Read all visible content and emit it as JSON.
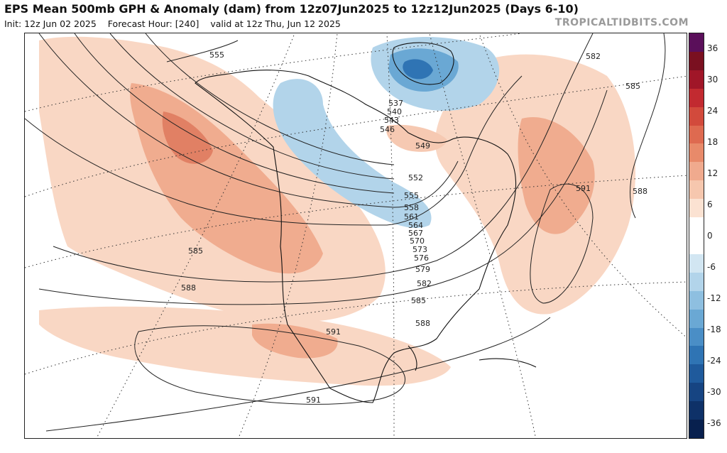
{
  "header": {
    "title": "EPS Mean 500mb GPH & Anomaly (dam) from 12z07Jun2025 to 12z12Jun2025 (Days 6-10)",
    "init": "Init: 12z Jun 02 2025",
    "forecast_hour": "Forecast Hour: [240]",
    "valid": "valid at 12z Thu, Jun 12 2025"
  },
  "watermark": "TROPICALTIDBITS.COM",
  "colorbar": {
    "labels": [
      "36",
      "30",
      "24",
      "18",
      "12",
      "6",
      "0",
      "-6",
      "-12",
      "-18",
      "-24",
      "-30",
      "-36"
    ],
    "colors": [
      "#5a0f5a",
      "#7a1020",
      "#a01628",
      "#c22a30",
      "#d24a3c",
      "#de6a50",
      "#e88a6a",
      "#f0aa8e",
      "#f6c7ae",
      "#fbe2d2",
      "#ffffff",
      "#ffffff",
      "#d2e6f2",
      "#b2d4ea",
      "#8ebfe0",
      "#6aa8d4",
      "#4a8ec6",
      "#2f74b4",
      "#1f5a9c",
      "#164482",
      "#0e3168",
      "#08204e"
    ]
  },
  "contour_labels": [
    "555",
    "537",
    "540",
    "543",
    "546",
    "549",
    "552",
    "555",
    "558",
    "561",
    "564",
    "567",
    "570",
    "573",
    "576",
    "579",
    "582",
    "585",
    "588",
    "591",
    "585",
    "588",
    "591",
    "582",
    "585",
    "588",
    "591"
  ],
  "map": {
    "anomaly_positive_color": "#e07050",
    "anomaly_negative_color": "#5a9ccc",
    "contour_color": "#222222",
    "coastline_color": "#111111"
  }
}
